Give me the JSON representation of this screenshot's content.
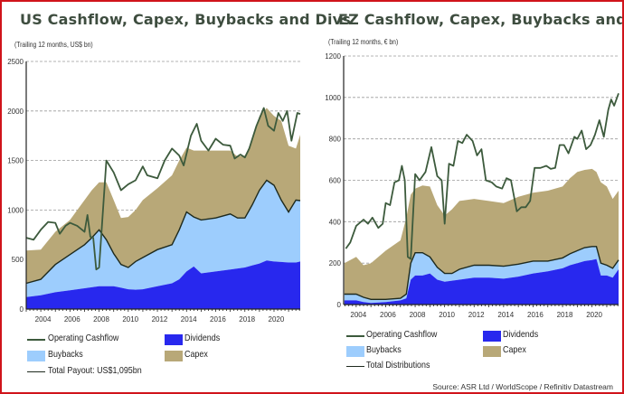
{
  "colors": {
    "dividends": "#2828ee",
    "buybacks": "#9dcdfd",
    "capex": "#b8a878",
    "ocf": "#3c5a3c",
    "total": "#1e2a1e",
    "grid": "#9a9a9a"
  },
  "source": "Source:  ASR Ltd  / WorldScope   / Refinitiv  Datastream",
  "chart_data": [
    {
      "type": "area",
      "title": "US Cashflow, Capex, Buybacks and Divs",
      "subtitle": "(Trailing 12 months, US$ bn)",
      "stacked": true,
      "ylim": [
        0,
        2500
      ],
      "yticks": [
        "0",
        "500",
        "1000",
        "1500",
        "2000",
        "2500"
      ],
      "xlim": [
        2003,
        2021.8
      ],
      "xticks": [
        "2004",
        "2006",
        "2008",
        "2010",
        "2012",
        "2014",
        "2016",
        "2018",
        "2020"
      ],
      "grid": true,
      "legend": {
        "placement": "bottom",
        "ocf": "Operating Cashflow",
        "buybacks": "Buybacks",
        "total": "Total Payout: US$1,095bn",
        "dividends": "Dividends",
        "capex": "Capex"
      },
      "x": [
        2003,
        2004,
        2005,
        2006,
        2007,
        2007.5,
        2008,
        2008.5,
        2009,
        2009.5,
        2010,
        2010.5,
        2011,
        2012,
        2013,
        2013.5,
        2014,
        2014.5,
        2015,
        2016,
        2017,
        2017.5,
        2018,
        2018.5,
        2019,
        2019.5,
        2020,
        2020.5,
        2021,
        2021.5,
        2021.8
      ],
      "series": [
        {
          "name": "Dividends",
          "values": [
            120,
            140,
            170,
            190,
            210,
            220,
            230,
            230,
            230,
            215,
            200,
            195,
            200,
            230,
            260,
            300,
            380,
            430,
            360,
            380,
            400,
            410,
            420,
            440,
            460,
            490,
            480,
            475,
            470,
            470,
            480
          ]
        },
        {
          "name": "Buybacks",
          "values": [
            140,
            160,
            280,
            360,
            440,
            500,
            570,
            470,
            330,
            235,
            220,
            285,
            320,
            370,
            390,
            500,
            600,
            500,
            540,
            540,
            560,
            510,
            500,
            610,
            740,
            810,
            770,
            625,
            510,
            630,
            615
          ]
        },
        {
          "name": "Capex",
          "values": [
            330,
            300,
            330,
            350,
            450,
            480,
            480,
            580,
            540,
            470,
            510,
            520,
            580,
            620,
            700,
            700,
            650,
            670,
            700,
            680,
            640,
            620,
            630,
            650,
            750,
            730,
            700,
            800,
            670,
            520,
            665
          ]
        }
      ],
      "ocf": {
        "name": "Operating Cashflow",
        "x": [
          2003,
          2003.5,
          2004,
          2004.5,
          2005,
          2005.3,
          2005.7,
          2006,
          2006.5,
          2007,
          2007.2,
          2007.4,
          2007.6,
          2007.8,
          2008.0,
          2008.5,
          2009,
          2009.5,
          2010,
          2010.5,
          2011,
          2011.3,
          2012,
          2012.5,
          2013,
          2013.5,
          2013.8,
          2014.3,
          2014.7,
          2015,
          2015.5,
          2016,
          2016.5,
          2017,
          2017.3,
          2017.7,
          2018,
          2018.3,
          2018.8,
          2019.3,
          2019.6,
          2020,
          2020.3,
          2020.6,
          2020.9,
          2021.2,
          2021.6,
          2021.8
        ],
        "values": [
          720,
          700,
          800,
          880,
          870,
          760,
          840,
          870,
          840,
          780,
          950,
          730,
          720,
          400,
          420,
          1500,
          1380,
          1200,
          1260,
          1300,
          1440,
          1350,
          1320,
          1500,
          1620,
          1550,
          1450,
          1750,
          1870,
          1700,
          1600,
          1720,
          1660,
          1650,
          1520,
          1560,
          1530,
          1620,
          1850,
          2030,
          1850,
          1800,
          1980,
          1900,
          2000,
          1700,
          1980,
          1970
        ]
      }
    },
    {
      "type": "area",
      "title": "EZ Cashflow, Capex, Buybacks and Divs",
      "subtitle": "(Trailing 12 months, € bn)",
      "stacked": true,
      "ylim": [
        0,
        1200
      ],
      "yticks": [
        "0",
        "200",
        "400",
        "600",
        "800",
        "1000",
        "1200"
      ],
      "xlim": [
        2003.15,
        2021.8
      ],
      "xticks": [
        "2004",
        "2006",
        "2008",
        "2010",
        "2012",
        "2014",
        "2016",
        "2018",
        "2020"
      ],
      "grid": true,
      "legend": {
        "placement": "bottom",
        "ocf": "Operating Cashflow",
        "buybacks": "Buybacks",
        "total": "Total Distributions",
        "dividends": "Dividends",
        "capex": "Capex"
      },
      "x": [
        2003.2,
        2004,
        2004.5,
        2005,
        2006,
        2007,
        2007.4,
        2007.7,
        2008,
        2008.5,
        2009,
        2009.5,
        2010,
        2010.5,
        2011,
        2012,
        2013,
        2014,
        2015,
        2016,
        2017,
        2018,
        2018.5,
        2019,
        2019.5,
        2020,
        2020.3,
        2020.6,
        2021,
        2021.4,
        2021.8
      ],
      "series": [
        {
          "name": "Dividends",
          "values": [
            20,
            20,
            12,
            8,
            12,
            20,
            30,
            120,
            140,
            140,
            150,
            120,
            110,
            115,
            120,
            130,
            130,
            125,
            135,
            150,
            160,
            175,
            190,
            200,
            210,
            215,
            220,
            140,
            140,
            130,
            170
          ]
        },
        {
          "name": "Buybacks",
          "values": [
            30,
            30,
            23,
            17,
            13,
            10,
            20,
            80,
            110,
            110,
            80,
            60,
            40,
            35,
            50,
            60,
            60,
            60,
            60,
            60,
            50,
            50,
            55,
            60,
            65,
            65,
            60,
            60,
            50,
            45,
            45
          ]
        },
        {
          "name": "Capex",
          "values": [
            150,
            180,
            155,
            175,
            235,
            280,
            370,
            330,
            310,
            325,
            340,
            300,
            280,
            310,
            330,
            320,
            310,
            305,
            325,
            330,
            340,
            345,
            365,
            380,
            375,
            375,
            360,
            390,
            380,
            335,
            335
          ]
        }
      ],
      "ocf": {
        "name": "Operating Cashflow",
        "x": [
          2003.3,
          2003.6,
          2004,
          2004.5,
          2004.8,
          2005.1,
          2005.5,
          2005.8,
          2006,
          2006.3,
          2006.6,
          2006.9,
          2007.1,
          2007.3,
          2007.5,
          2007.7,
          2008,
          2008.3,
          2008.7,
          2009.1,
          2009.5,
          2009.8,
          2010,
          2010.3,
          2010.6,
          2010.9,
          2011.2,
          2011.5,
          2011.9,
          2012.2,
          2012.5,
          2012.8,
          2013.2,
          2013.5,
          2013.9,
          2014.2,
          2014.5,
          2014.9,
          2015.2,
          2015.5,
          2015.8,
          2016.1,
          2016.5,
          2016.9,
          2017.2,
          2017.5,
          2017.8,
          2018.1,
          2018.4,
          2018.8,
          2019,
          2019.3,
          2019.6,
          2019.9,
          2020.2,
          2020.5,
          2020.8,
          2021.1,
          2021.3,
          2021.5,
          2021.8
        ],
        "values": [
          270,
          300,
          380,
          410,
          390,
          420,
          370,
          390,
          490,
          480,
          590,
          600,
          670,
          600,
          230,
          220,
          630,
          600,
          640,
          760,
          620,
          600,
          390,
          680,
          670,
          790,
          780,
          820,
          790,
          720,
          750,
          600,
          590,
          570,
          560,
          610,
          600,
          450,
          470,
          470,
          500,
          660,
          660,
          670,
          655,
          660,
          770,
          770,
          730,
          810,
          800,
          840,
          750,
          770,
          820,
          890,
          810,
          940,
          990,
          960,
          1020
        ]
      }
    }
  ]
}
